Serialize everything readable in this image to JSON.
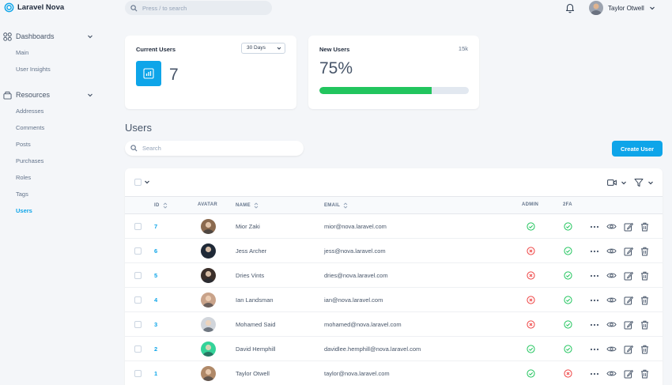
{
  "app": {
    "name": "Laravel Nova"
  },
  "header": {
    "search_placeholder": "Press / to search",
    "user_name": "Taylor Otwell"
  },
  "sidebar": {
    "sections": [
      {
        "label": "Dashboards",
        "items": [
          {
            "label": "Main"
          },
          {
            "label": "User Insights"
          }
        ]
      },
      {
        "label": "Resources",
        "items": [
          {
            "label": "Addresses"
          },
          {
            "label": "Comments"
          },
          {
            "label": "Posts"
          },
          {
            "label": "Purchases"
          },
          {
            "label": "Roles"
          },
          {
            "label": "Tags"
          },
          {
            "label": "Users",
            "active": true
          }
        ]
      }
    ]
  },
  "metrics": {
    "current_users": {
      "title": "Current Users",
      "range": "30 Days",
      "value": "7"
    },
    "new_users": {
      "title": "New Users",
      "cap": "15k",
      "percent_label": "75%",
      "progress": 0.75
    }
  },
  "resource": {
    "title": "Users",
    "search_placeholder": "Search",
    "create_label": "Create User",
    "columns": {
      "id": "ID",
      "avatar": "AVATAR",
      "name": "NAME",
      "email": "EMAIL",
      "admin": "ADMIN",
      "twofa": "2FA"
    },
    "rows": [
      {
        "id": "7",
        "name": "Mior Zaki",
        "email": "mior@nova.laravel.com",
        "admin": true,
        "twofa": true,
        "avatar_color": "#8b6a4f"
      },
      {
        "id": "6",
        "name": "Jess Archer",
        "email": "jess@nova.laravel.com",
        "admin": false,
        "twofa": true,
        "avatar_color": "#1f2937"
      },
      {
        "id": "5",
        "name": "Dries Vints",
        "email": "dries@nova.laravel.com",
        "admin": false,
        "twofa": true,
        "avatar_color": "#3b2f2a"
      },
      {
        "id": "4",
        "name": "Ian Landsman",
        "email": "ian@nova.laravel.com",
        "admin": false,
        "twofa": true,
        "avatar_color": "#c9a38a"
      },
      {
        "id": "3",
        "name": "Mohamed Said",
        "email": "mohamed@nova.laravel.com",
        "admin": false,
        "twofa": true,
        "avatar_color": "#d1d5db"
      },
      {
        "id": "2",
        "name": "David Hemphill",
        "email": "davidlee.hemphill@nova.laravel.com",
        "admin": true,
        "twofa": true,
        "avatar_color": "#34d399"
      },
      {
        "id": "1",
        "name": "Taylor Otwell",
        "email": "taylor@nova.laravel.com",
        "admin": true,
        "twofa": false,
        "avatar_color": "#b08968"
      }
    ]
  },
  "colors": {
    "accent": "#0ea5e9",
    "success": "#22c55e",
    "danger": "#ef4444"
  },
  "icons": [
    "logo-icon",
    "search-icon",
    "bell-icon",
    "dashboards-icon",
    "resources-icon",
    "chevron-down-icon",
    "chart-icon",
    "view-icon",
    "filter-icon",
    "more-icon",
    "eye-icon",
    "edit-icon",
    "trash-icon",
    "check-circle-icon",
    "x-circle-icon",
    "sort-icon"
  ]
}
